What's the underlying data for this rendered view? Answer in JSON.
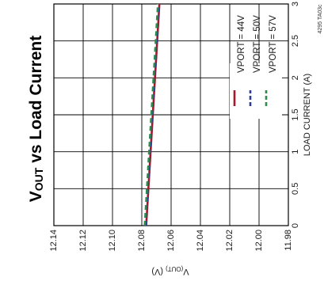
{
  "chart_data": {
    "type": "line",
    "title": {
      "main": "V",
      "sub": "OUT",
      "rest": " vs Load Current"
    },
    "xlabel": "LOAD CURRENT (A)",
    "ylabel": {
      "main": "V",
      "sub": "(OUT)",
      "rest": " (V)"
    },
    "figure_id": "4295 TA03c",
    "xlim": [
      0,
      3
    ],
    "ylim": [
      11.98,
      12.14
    ],
    "xticks": [
      "0",
      "0.5",
      "1",
      "1.5",
      "2",
      "2.5",
      "3"
    ],
    "yticks": [
      "11.98",
      "12.00",
      "12.02",
      "12.04",
      "12.06",
      "12.08",
      "12.10",
      "12.12",
      "12.14"
    ],
    "grid": true,
    "legend_position": "bottom-right",
    "series": [
      {
        "name": "VPORT = 44V",
        "color": "#a3192b",
        "dash": "solid",
        "x": [
          0,
          3
        ],
        "y": [
          12.077,
          12.068
        ]
      },
      {
        "name": "VPORT = 50V",
        "color": "#2a3d9b",
        "dash": "dashed",
        "x": [
          0,
          3
        ],
        "y": [
          12.0775,
          12.0685
        ]
      },
      {
        "name": "VPORT = 57V",
        "color": "#2e8b4a",
        "dash": "dashed",
        "x": [
          0,
          3
        ],
        "y": [
          12.078,
          12.069
        ]
      }
    ]
  }
}
